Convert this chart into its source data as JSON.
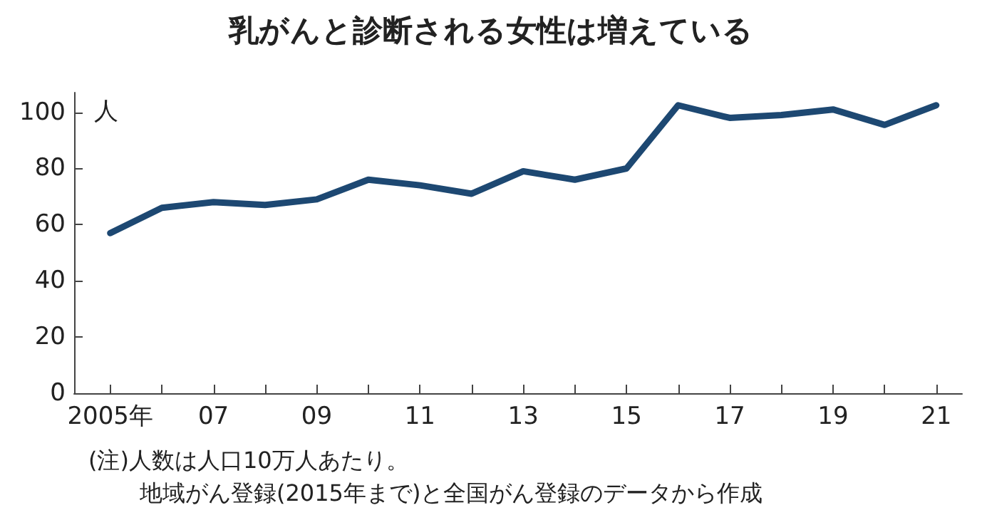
{
  "chart_data": {
    "type": "line",
    "title": "乳がんと診断される女性は増えている",
    "ylabel": "人",
    "annotations": [
      "(注)人数は人口10万人あたり。",
      "地域がん登録(2015年まで)と全国がん登録のデータから作成"
    ],
    "x": [
      2005,
      2006,
      2007,
      2008,
      2009,
      2010,
      2011,
      2012,
      2013,
      2014,
      2015,
      2016,
      2017,
      2018,
      2019,
      2020,
      2021
    ],
    "series": [
      {
        "color": "#1d4872",
        "values": [
          57,
          66,
          68,
          67,
          69,
          76,
          74,
          71,
          79,
          76,
          80,
          102.5,
          98,
          99,
          101,
          95.5,
          102.5
        ]
      }
    ],
    "xlim": [
      2004.3,
      2021.5
    ],
    "xticks": [
      {
        "value": 2005,
        "label": "2005年"
      },
      {
        "value": 2006,
        "label": null
      },
      {
        "value": 2007,
        "label": "07"
      },
      {
        "value": 2008,
        "label": null
      },
      {
        "value": 2009,
        "label": "09"
      },
      {
        "value": 2010,
        "label": null
      },
      {
        "value": 2011,
        "label": "11"
      },
      {
        "value": 2012,
        "label": null
      },
      {
        "value": 2013,
        "label": "13"
      },
      {
        "value": 2014,
        "label": null
      },
      {
        "value": 2015,
        "label": "15"
      },
      {
        "value": 2016,
        "label": null
      },
      {
        "value": 2017,
        "label": "17"
      },
      {
        "value": 2018,
        "label": null
      },
      {
        "value": 2019,
        "label": "19"
      },
      {
        "value": 2020,
        "label": null
      },
      {
        "value": 2021,
        "label": "21"
      }
    ],
    "ylim": [
      0,
      107
    ],
    "yticks": [
      0,
      20,
      40,
      60,
      80,
      100
    ],
    "grid": false,
    "legend": false,
    "marker": "none",
    "line_style": "solid"
  }
}
